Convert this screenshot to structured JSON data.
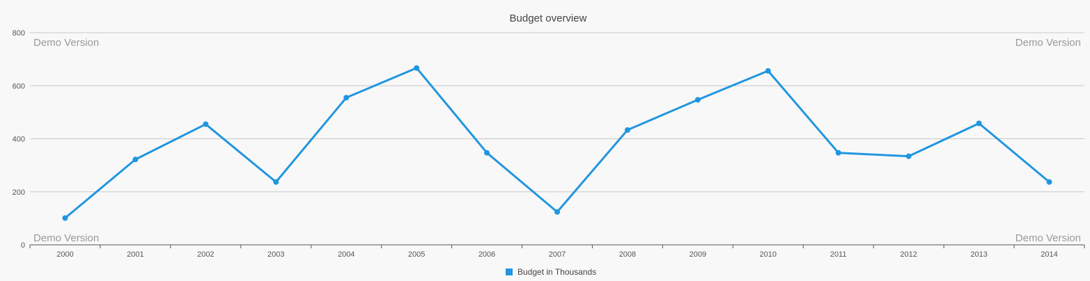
{
  "watermarks": {
    "top_left": "Demo Version",
    "top_right": "Demo Version",
    "bottom_left": "Demo Version",
    "bottom_right": "Demo Version"
  },
  "chart_data": {
    "type": "line",
    "title": "Budget overview",
    "xlabel": "",
    "ylabel": "",
    "categories": [
      "2000",
      "2001",
      "2002",
      "2003",
      "2004",
      "2005",
      "2006",
      "2007",
      "2008",
      "2009",
      "2010",
      "2011",
      "2012",
      "2013",
      "2014"
    ],
    "series": [
      {
        "name": "Budget in Thousands",
        "color": "#2196e0",
        "values": [
          101,
          322,
          455,
          237,
          555,
          667,
          347,
          124,
          433,
          547,
          656,
          347,
          334,
          458,
          237
        ]
      }
    ],
    "ylim": [
      0,
      800
    ],
    "yticks": [
      "0",
      "200",
      "400",
      "600",
      "800"
    ],
    "grid": true,
    "legend": "bottom-center",
    "markers": true
  }
}
